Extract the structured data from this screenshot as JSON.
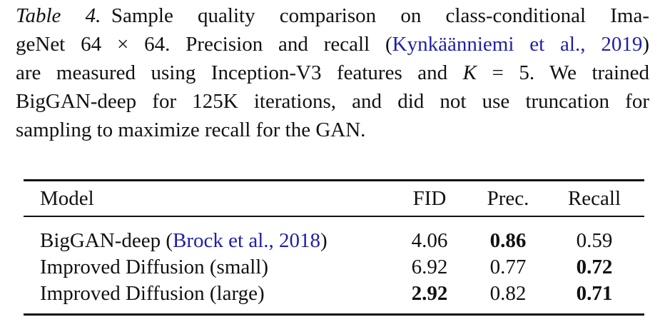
{
  "caption": {
    "label": "Table 4.",
    "lines": [
      [
        {
          "text": "Sample quality comparison on class-conditional Ima-"
        }
      ],
      [
        {
          "text": "geNet 64 × 64. Precision and recall ("
        },
        {
          "text": "Kynkäänniemi et al., 2019",
          "color": "#1f1fa8"
        },
        {
          "text": ")"
        }
      ],
      [
        {
          "text": "are measured using Inception-V3 features and "
        },
        {
          "text": "K",
          "italic": true
        },
        {
          "text": " = 5. We trained"
        }
      ],
      [
        {
          "text": "BigGAN-deep for 125K iterations, and did not use truncation for"
        }
      ],
      [
        {
          "text": "sampling to maximize recall for the GAN."
        }
      ]
    ]
  },
  "table": {
    "headers": [
      "Model",
      "FID",
      "Prec.",
      "Recall"
    ],
    "rows": [
      {
        "model": [
          {
            "text": "BigGAN-deep ("
          },
          {
            "text": "Brock et al., 2018",
            "color": "#1f1fa8"
          },
          {
            "text": ")"
          }
        ],
        "cells": [
          "4.06",
          "0.86",
          "0.59"
        ],
        "bold": [
          false,
          true,
          false
        ]
      },
      {
        "model": [
          {
            "text": "Improved Diffusion (small)"
          }
        ],
        "cells": [
          "6.92",
          "0.77",
          "0.72"
        ],
        "bold": [
          false,
          false,
          true
        ]
      },
      {
        "model": [
          {
            "text": "Improved Diffusion (large)"
          }
        ],
        "cells": [
          "2.92",
          "0.82",
          "0.71"
        ],
        "bold": [
          true,
          false,
          true
        ]
      }
    ]
  }
}
